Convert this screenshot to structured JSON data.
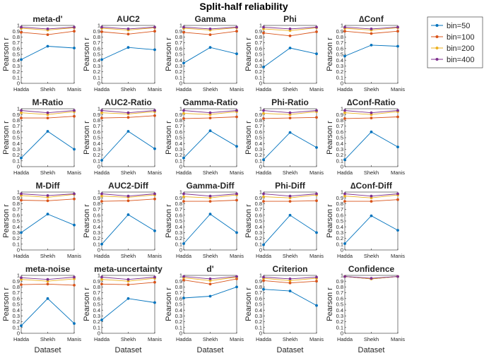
{
  "figure": {
    "title": "Split-half reliability",
    "xlabel": "Dataset",
    "ylabel": "Pearson r",
    "legend": [
      "bin=50",
      "bin=100",
      "bin=200",
      "bin=400"
    ],
    "colors": [
      "#0072BD",
      "#D95319",
      "#EDB120",
      "#7E2F8E"
    ]
  },
  "chart_data": {
    "type": "line",
    "categories": [
      "Hadda",
      "Shekh",
      "Manis"
    ],
    "ylim": [
      0,
      1
    ],
    "yticks": [
      "0",
      "0.1",
      "0.2",
      "0.3",
      "0.4",
      "0.5",
      "0.6",
      "0.7",
      "0.8",
      "0.9",
      "1"
    ],
    "series_names": [
      "bin=50",
      "bin=100",
      "bin=200",
      "bin=400"
    ],
    "panels": [
      {
        "title": "meta-d'",
        "series": [
          [
            0.41,
            0.64,
            0.61
          ],
          [
            0.88,
            0.84,
            0.9
          ],
          [
            0.95,
            0.92,
            0.96
          ],
          [
            0.97,
            0.94,
            0.97
          ]
        ]
      },
      {
        "title": "AUC2",
        "series": [
          [
            0.41,
            0.62,
            0.58
          ],
          [
            0.89,
            0.85,
            0.9
          ],
          [
            0.95,
            0.92,
            0.96
          ],
          [
            0.97,
            0.94,
            0.97
          ]
        ]
      },
      {
        "title": "Gamma",
        "series": [
          [
            0.35,
            0.62,
            0.51
          ],
          [
            0.88,
            0.84,
            0.9
          ],
          [
            0.95,
            0.92,
            0.96
          ],
          [
            0.97,
            0.94,
            0.97
          ]
        ]
      },
      {
        "title": "Phi",
        "series": [
          [
            0.28,
            0.61,
            0.51
          ],
          [
            0.87,
            0.82,
            0.89
          ],
          [
            0.94,
            0.91,
            0.96
          ],
          [
            0.97,
            0.94,
            0.97
          ]
        ]
      },
      {
        "title": "∆Conf",
        "series": [
          [
            0.47,
            0.66,
            0.64
          ],
          [
            0.9,
            0.86,
            0.9
          ],
          [
            0.95,
            0.92,
            0.96
          ],
          [
            0.97,
            0.94,
            0.97
          ]
        ]
      },
      {
        "title": "M-Ratio",
        "series": [
          [
            0.15,
            0.61,
            0.3
          ],
          [
            0.84,
            0.84,
            0.87
          ],
          [
            0.93,
            0.9,
            0.95
          ],
          [
            0.97,
            0.93,
            0.97
          ]
        ]
      },
      {
        "title": "AUC2-Ratio",
        "series": [
          [
            0.11,
            0.61,
            0.31
          ],
          [
            0.84,
            0.85,
            0.88
          ],
          [
            0.93,
            0.91,
            0.95
          ],
          [
            0.97,
            0.93,
            0.97
          ]
        ]
      },
      {
        "title": "Gamma-Ratio",
        "series": [
          [
            0.15,
            0.62,
            0.35
          ],
          [
            0.83,
            0.84,
            0.86
          ],
          [
            0.92,
            0.9,
            0.95
          ],
          [
            0.97,
            0.93,
            0.97
          ]
        ]
      },
      {
        "title": "Phi-Ratio",
        "series": [
          [
            0.12,
            0.59,
            0.33
          ],
          [
            0.83,
            0.84,
            0.85
          ],
          [
            0.92,
            0.9,
            0.95
          ],
          [
            0.97,
            0.93,
            0.97
          ]
        ]
      },
      {
        "title": "∆Conf-Ratio",
        "series": [
          [
            0.12,
            0.6,
            0.34
          ],
          [
            0.83,
            0.84,
            0.86
          ],
          [
            0.93,
            0.9,
            0.95
          ],
          [
            0.97,
            0.93,
            0.97
          ]
        ]
      },
      {
        "title": "M-Diff",
        "series": [
          [
            0.3,
            0.62,
            0.43
          ],
          [
            0.86,
            0.85,
            0.88
          ],
          [
            0.94,
            0.91,
            0.96
          ],
          [
            0.97,
            0.94,
            0.97
          ]
        ]
      },
      {
        "title": "AUC2-Diff",
        "series": [
          [
            0.1,
            0.61,
            0.33
          ],
          [
            0.84,
            0.85,
            0.88
          ],
          [
            0.93,
            0.91,
            0.95
          ],
          [
            0.97,
            0.93,
            0.97
          ]
        ]
      },
      {
        "title": "Gamma-Diff",
        "series": [
          [
            0.11,
            0.62,
            0.3
          ],
          [
            0.84,
            0.84,
            0.86
          ],
          [
            0.92,
            0.9,
            0.95
          ],
          [
            0.97,
            0.93,
            0.97
          ]
        ]
      },
      {
        "title": "Phi-Diff",
        "series": [
          [
            0.09,
            0.6,
            0.3
          ],
          [
            0.84,
            0.84,
            0.85
          ],
          [
            0.92,
            0.9,
            0.95
          ],
          [
            0.97,
            0.93,
            0.97
          ]
        ]
      },
      {
        "title": "∆Conf-Diff",
        "series": [
          [
            0.11,
            0.59,
            0.34
          ],
          [
            0.84,
            0.84,
            0.87
          ],
          [
            0.93,
            0.9,
            0.95
          ],
          [
            0.97,
            0.93,
            0.97
          ]
        ]
      },
      {
        "title": "meta-noise",
        "series": [
          [
            0.13,
            0.6,
            0.17
          ],
          [
            0.84,
            0.85,
            0.83
          ],
          [
            0.93,
            0.9,
            0.94
          ],
          [
            0.96,
            0.93,
            0.97
          ]
        ]
      },
      {
        "title": "meta-uncertainty",
        "series": [
          [
            0.23,
            0.6,
            0.53
          ],
          [
            0.85,
            0.84,
            0.88
          ],
          [
            0.93,
            0.9,
            0.95
          ],
          [
            0.97,
            0.93,
            0.97
          ]
        ]
      },
      {
        "title": "d'",
        "series": [
          [
            0.61,
            0.64,
            0.8
          ],
          [
            0.92,
            0.85,
            0.94
          ],
          [
            0.96,
            0.91,
            0.97
          ],
          [
            0.98,
            0.94,
            0.98
          ]
        ]
      },
      {
        "title": "Criterion",
        "series": [
          [
            0.76,
            0.73,
            0.48
          ],
          [
            0.91,
            0.87,
            0.9
          ],
          [
            0.95,
            0.91,
            0.95
          ],
          [
            0.97,
            0.94,
            0.97
          ]
        ]
      },
      {
        "title": "Confidence",
        "series": [
          [
            0.98,
            0.94,
            0.98
          ],
          [
            0.98,
            0.94,
            0.98
          ],
          [
            0.98,
            0.94,
            0.98
          ],
          [
            0.98,
            0.95,
            0.98
          ]
        ]
      }
    ]
  }
}
